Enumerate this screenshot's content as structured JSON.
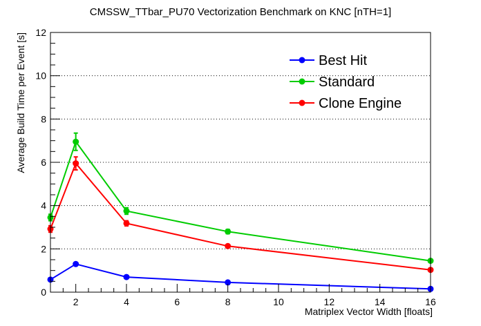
{
  "chart_data": {
    "type": "line",
    "title": "CMSSW_TTbar_PU70 Vectorization Benchmark on KNC [nTH=1]",
    "xlabel": "Matriplex Vector Width [floats]",
    "ylabel": "Average Build Time per Event [s]",
    "xlim": [
      1,
      16
    ],
    "ylim": [
      0,
      12
    ],
    "x_ticks": [
      2,
      4,
      6,
      8,
      10,
      12,
      14,
      16
    ],
    "y_ticks": [
      0,
      2,
      4,
      6,
      8,
      10,
      12
    ],
    "grid": "horizontal dotted",
    "legend_position": "top-right",
    "x": [
      1,
      2,
      4,
      8,
      16
    ],
    "series": [
      {
        "name": "Best Hit",
        "color": "#0000ff",
        "values": [
          0.58,
          1.3,
          0.7,
          0.45,
          0.15
        ],
        "errors": [
          0.05,
          0.06,
          0.05,
          0.04,
          0.03
        ]
      },
      {
        "name": "Standard",
        "color": "#00cc00",
        "values": [
          3.45,
          6.95,
          3.75,
          2.8,
          1.45
        ],
        "errors": [
          0.15,
          0.4,
          0.15,
          0.1,
          0.06
        ]
      },
      {
        "name": "Clone Engine",
        "color": "#ff0000",
        "values": [
          2.92,
          5.95,
          3.18,
          2.13,
          1.03
        ],
        "errors": [
          0.15,
          0.3,
          0.12,
          0.06,
          0.05
        ]
      }
    ]
  }
}
